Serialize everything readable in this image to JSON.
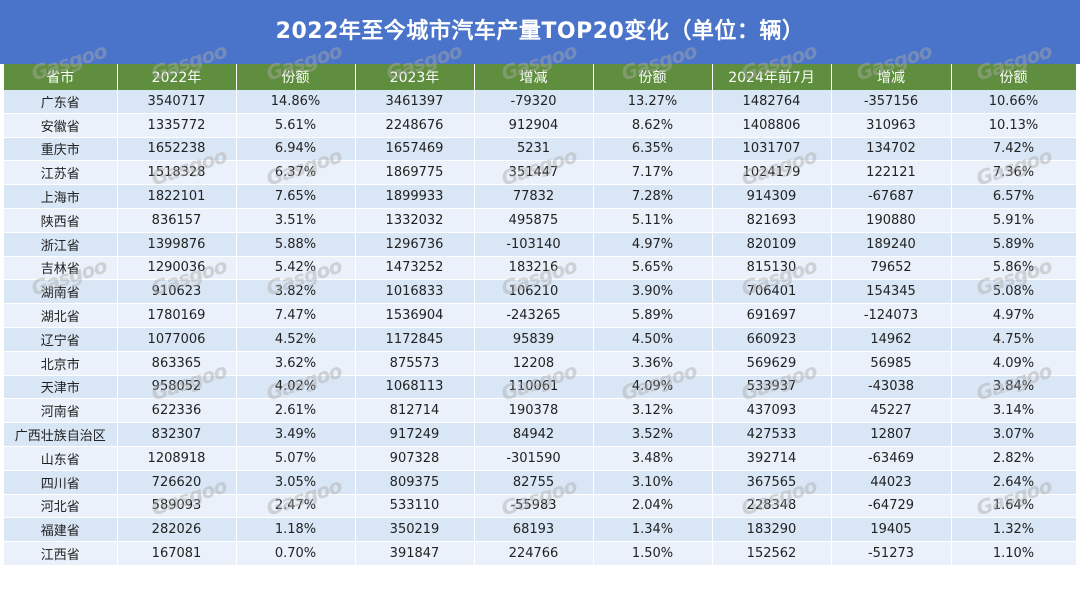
{
  "title": "2022年至今城市汽车产量TOP20变化（单位：辆）",
  "headers": [
    "省市",
    "2022年",
    "份额",
    "2023年",
    "增减",
    "份额",
    "2024年前7月",
    "增减",
    "份额"
  ],
  "rows": [
    [
      "广东省",
      "3540717",
      "14.86%",
      "3461397",
      "-79320",
      "13.27%",
      "1482764",
      "-357156",
      "10.66%"
    ],
    [
      "安徽省",
      "1335772",
      "5.61%",
      "2248676",
      "912904",
      "8.62%",
      "1408806",
      "310963",
      "10.13%"
    ],
    [
      "重庆市",
      "1652238",
      "6.94%",
      "1657469",
      "5231",
      "6.35%",
      "1031707",
      "134702",
      "7.42%"
    ],
    [
      "江苏省",
      "1518328",
      "6.37%",
      "1869775",
      "351447",
      "7.17%",
      "1024179",
      "122121",
      "7.36%"
    ],
    [
      "上海市",
      "1822101",
      "7.65%",
      "1899933",
      "77832",
      "7.28%",
      "914309",
      "-67687",
      "6.57%"
    ],
    [
      "陕西省",
      "836157",
      "3.51%",
      "1332032",
      "495875",
      "5.11%",
      "821693",
      "190880",
      "5.91%"
    ],
    [
      "浙江省",
      "1399876",
      "5.88%",
      "1296736",
      "-103140",
      "4.97%",
      "820109",
      "189240",
      "5.89%"
    ],
    [
      "吉林省",
      "1290036",
      "5.42%",
      "1473252",
      "183216",
      "5.65%",
      "815130",
      "79652",
      "5.86%"
    ],
    [
      "湖南省",
      "910623",
      "3.82%",
      "1016833",
      "106210",
      "3.90%",
      "706401",
      "154345",
      "5.08%"
    ],
    [
      "湖北省",
      "1780169",
      "7.47%",
      "1536904",
      "-243265",
      "5.89%",
      "691697",
      "-124073",
      "4.97%"
    ],
    [
      "辽宁省",
      "1077006",
      "4.52%",
      "1172845",
      "95839",
      "4.50%",
      "660923",
      "14962",
      "4.75%"
    ],
    [
      "北京市",
      "863365",
      "3.62%",
      "875573",
      "12208",
      "3.36%",
      "569629",
      "56985",
      "4.09%"
    ],
    [
      "天津市",
      "958052",
      "4.02%",
      "1068113",
      "110061",
      "4.09%",
      "533937",
      "-43038",
      "3.84%"
    ],
    [
      "河南省",
      "622336",
      "2.61%",
      "812714",
      "190378",
      "3.12%",
      "437093",
      "45227",
      "3.14%"
    ],
    [
      "广西壮族自治区",
      "832307",
      "3.49%",
      "917249",
      "84942",
      "3.52%",
      "427533",
      "12807",
      "3.07%"
    ],
    [
      "山东省",
      "1208918",
      "5.07%",
      "907328",
      "-301590",
      "3.48%",
      "392714",
      "-63469",
      "2.82%"
    ],
    [
      "四川省",
      "726620",
      "3.05%",
      "809375",
      "82755",
      "3.10%",
      "367565",
      "44023",
      "2.64%"
    ],
    [
      "河北省",
      "589093",
      "2.47%",
      "533110",
      "-55983",
      "2.04%",
      "228348",
      "-64729",
      "1.64%"
    ],
    [
      "福建省",
      "282026",
      "1.18%",
      "350219",
      "68193",
      "1.34%",
      "183290",
      "19405",
      "1.32%"
    ],
    [
      "江西省",
      "167081",
      "0.70%",
      "391847",
      "224766",
      "1.50%",
      "152562",
      "-51273",
      "1.10%"
    ]
  ],
  "watermark": "Gasgoo",
  "colors": {
    "title_bg": "#4a74c9",
    "header_bg": "#5f8f3e",
    "row_odd": "#d9e6f5",
    "row_even": "#eaf1fa"
  }
}
